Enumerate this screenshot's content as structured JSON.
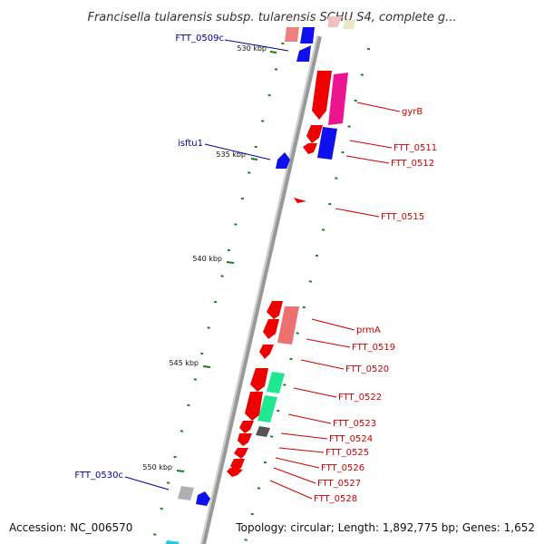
{
  "title": "Francisella tularensis subsp. tularensis SCHU S4, complete g...",
  "accession": "Accession: NC_006570",
  "topology": "Topology: circular; Length: 1,892,775 bp; Genes: 1,652",
  "colors": {
    "forward_label": "#cc0000",
    "reverse_label": "#000099",
    "backbone": "#808080",
    "ticks": "#1a7a1a",
    "red": "#ee0000",
    "pink_red": "#ee7070",
    "magenta": "#ee1490",
    "blue": "#1010ee",
    "green": "#20e890",
    "grey": "#b0b0b0",
    "dark_grey": "#555555",
    "light_pink": "#f0a0a0"
  },
  "kbp_ticks": [
    {
      "label": "530 kbp"
    },
    {
      "label": "535 kbp"
    },
    {
      "label": "540 kbp"
    },
    {
      "label": "545 kbp"
    },
    {
      "label": "550 kbp"
    }
  ],
  "gene_labels": {
    "forward": [
      {
        "text": "gyrB"
      },
      {
        "text": "FTT_0511"
      },
      {
        "text": "FTT_0512"
      },
      {
        "text": "FTT_0515"
      },
      {
        "text": "prmA"
      },
      {
        "text": "FTT_0519"
      },
      {
        "text": "FTT_0520"
      },
      {
        "text": "FTT_0522"
      },
      {
        "text": "FTT_0523"
      },
      {
        "text": "FTT_0524"
      },
      {
        "text": "FTT_0525"
      },
      {
        "text": "FTT_0526"
      },
      {
        "text": "FTT_0527"
      },
      {
        "text": "FTT_0528"
      }
    ],
    "reverse": [
      {
        "text": "FTT_0509c"
      },
      {
        "text": "isftu1"
      },
      {
        "text": "FTT_0530c"
      }
    ]
  }
}
